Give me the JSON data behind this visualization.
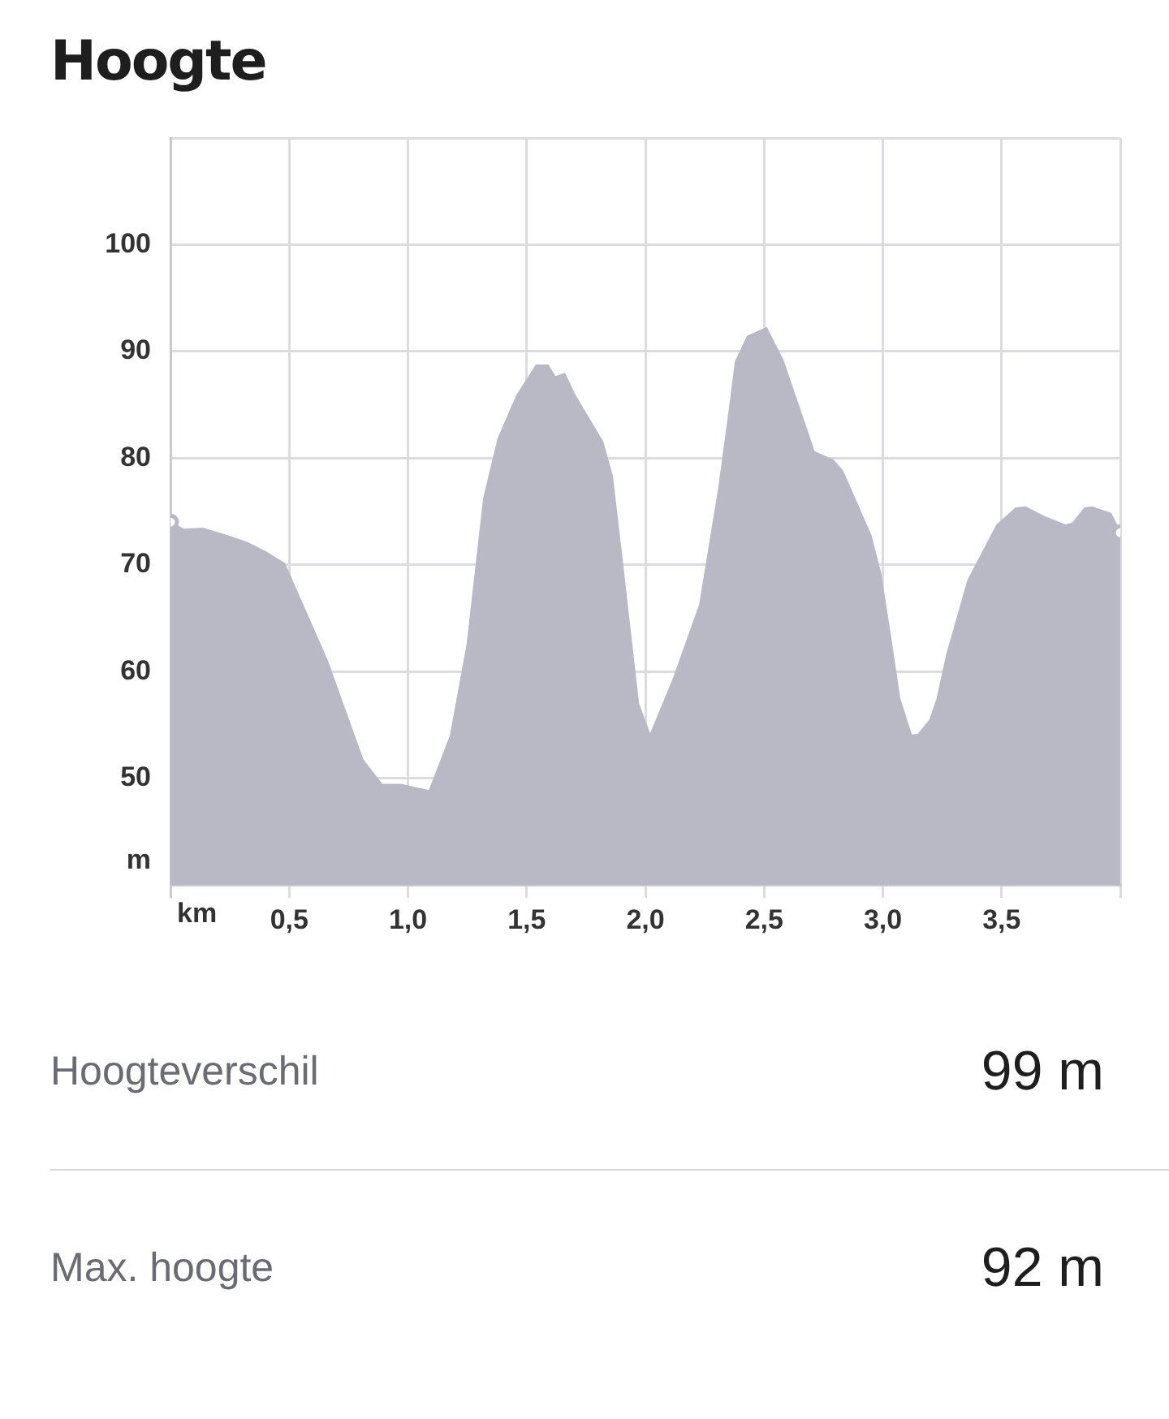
{
  "chart_data": {
    "type": "area",
    "title": "Hoogte",
    "xlabel": "km",
    "ylabel": "m",
    "x": [
      0,
      0.055,
      0.137,
      0.24,
      0.32,
      0.4,
      0.48,
      0.66,
      0.81,
      0.89,
      0.97,
      1.09,
      1.18,
      1.25,
      1.32,
      1.38,
      1.46,
      1.54,
      1.59,
      1.62,
      1.66,
      1.7,
      1.82,
      1.86,
      1.9,
      1.97,
      2.02,
      2.12,
      2.23,
      2.31,
      2.35,
      2.38,
      2.43,
      2.51,
      2.58,
      2.71,
      2.79,
      2.83,
      2.95,
      2.99,
      3.03,
      3.07,
      3.12,
      3.15,
      3.2,
      3.23,
      3.27,
      3.36,
      3.41,
      3.48,
      3.56,
      3.6,
      3.68,
      3.77,
      3.8,
      3.85,
      3.88,
      3.96,
      4.0
    ],
    "series": [
      {
        "color": "#b9b9c6",
        "values": [
          74.0,
          73.3,
          73.4,
          72.7,
          72.1,
          71.2,
          70.1,
          61.0,
          51.7,
          49.4,
          49.4,
          48.8,
          54.0,
          62.5,
          76.2,
          81.8,
          85.9,
          88.7,
          88.7,
          87.6,
          87.9,
          86.0,
          81.5,
          78.3,
          70.7,
          57.0,
          54.0,
          59.4,
          66.3,
          77.2,
          83.8,
          89.0,
          91.4,
          92.2,
          89.1,
          80.6,
          79.8,
          78.8,
          72.7,
          69.2,
          63.5,
          57.5,
          54.0,
          54.1,
          55.5,
          57.5,
          61.6,
          68.6,
          70.7,
          73.7,
          75.3,
          75.4,
          74.5,
          73.7,
          73.9,
          75.3,
          75.4,
          74.8,
          73.0
        ]
      }
    ],
    "xlim": [
      0,
      4.0
    ],
    "ylim": [
      40,
      110
    ],
    "xticks": [
      {
        "value": 0,
        "label": null
      },
      {
        "value": 0.5,
        "label": "0,5"
      },
      {
        "value": 1.0,
        "label": "1,0"
      },
      {
        "value": 1.5,
        "label": "1,5"
      },
      {
        "value": 2.0,
        "label": "2,0"
      },
      {
        "value": 2.5,
        "label": "2,5"
      },
      {
        "value": 3.0,
        "label": "3,0"
      },
      {
        "value": 3.5,
        "label": "3,5"
      },
      {
        "value": 4.0,
        "label": null
      }
    ],
    "yticks": [
      {
        "value": 40,
        "label": null
      },
      50,
      60,
      70,
      80,
      90,
      100,
      {
        "value": 110,
        "label": null
      }
    ],
    "grid": true,
    "legend": false,
    "annotations": [
      "Hoogteverschil",
      "99 m",
      "Max. hoogte",
      "92 m"
    ]
  }
}
